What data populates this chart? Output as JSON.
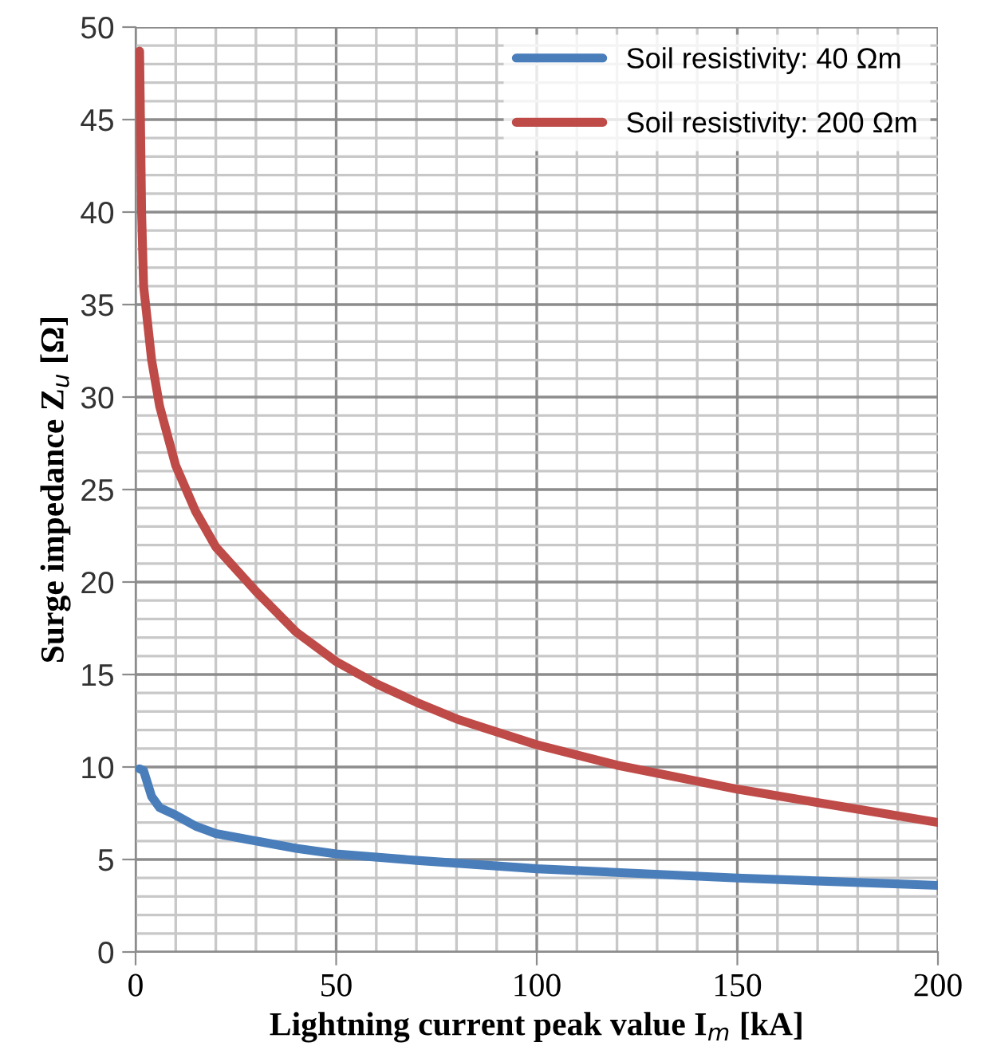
{
  "chart_data": {
    "type": "line",
    "xlabel": "Lightning current peak value I$_{m}$ [kA]",
    "ylabel": "Surge impedance Z$_{u}$ [Ω]",
    "xlim": [
      0,
      200
    ],
    "ylim": [
      0,
      50
    ],
    "xticks": [
      0,
      50,
      100,
      150,
      200
    ],
    "yticks": [
      0,
      5,
      10,
      15,
      20,
      25,
      30,
      35,
      40,
      45,
      50
    ],
    "grid": true,
    "legend": "top right",
    "line_style": "solid",
    "marker": "none",
    "series": [
      {
        "name": "Soil resistivity: 40 Ωm",
        "color": "#4a7ebb",
        "x": [
          1,
          2,
          4,
          6,
          10,
          15,
          20,
          30,
          40,
          50,
          70,
          100,
          150,
          200
        ],
        "values": [
          9.9,
          9.8,
          8.4,
          7.8,
          7.4,
          6.8,
          6.4,
          6.0,
          5.6,
          5.3,
          4.95,
          4.5,
          4.0,
          3.6
        ]
      },
      {
        "name": "Soil resistivity: 200 Ωm",
        "color": "#be4b48",
        "x": [
          1,
          1.5,
          2,
          4,
          6,
          10,
          15,
          20,
          30,
          40,
          50,
          60,
          70,
          80,
          90,
          100,
          120,
          150,
          175,
          200
        ],
        "values": [
          48.7,
          40,
          36,
          32,
          29.5,
          26.3,
          23.8,
          21.9,
          19.5,
          17.3,
          15.7,
          14.5,
          13.5,
          12.6,
          11.9,
          11.2,
          10.1,
          8.8,
          7.9,
          7.0
        ]
      }
    ]
  }
}
